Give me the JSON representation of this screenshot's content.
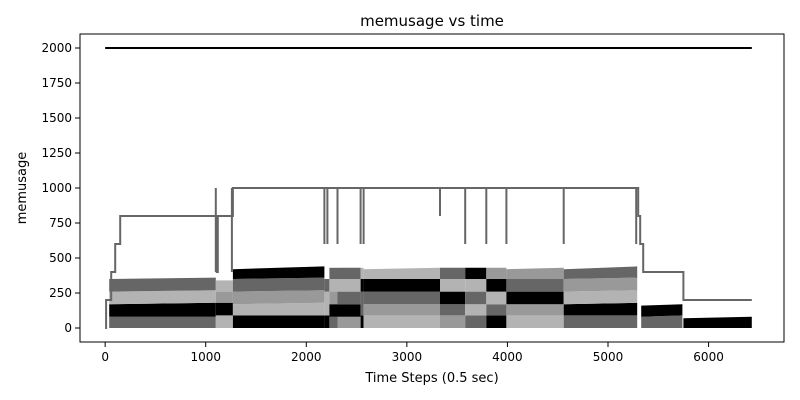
{
  "chart_data": {
    "type": "area",
    "title": "memusage vs time",
    "xlabel": "Time Steps (0.5 sec)",
    "ylabel": "memusage",
    "xlim": [
      -250,
      6750
    ],
    "ylim": [
      -100,
      2100
    ],
    "xticks": [
      0,
      1000,
      2000,
      3000,
      4000,
      5000,
      6000
    ],
    "yticks": [
      0,
      250,
      500,
      750,
      1000,
      1250,
      1500,
      1750,
      2000
    ],
    "grid": false,
    "legend": "none",
    "colors": {
      "black": "#000000",
      "dark": "#666666",
      "mid": "#999999",
      "light": "#b3b3b3",
      "line": "#666666",
      "limit": "#000000"
    },
    "limit_line": {
      "y": 2000,
      "x": [
        0,
        6430
      ]
    },
    "total_line": {
      "x": [
        0,
        10,
        60,
        100,
        150,
        1100,
        1110,
        1120,
        1260,
        1270,
        2180,
        2200,
        2210,
        2230,
        2300,
        2310,
        2320,
        2540,
        2560,
        2570,
        2580,
        3330,
        3340,
        3580,
        3590,
        3790,
        3800,
        3990,
        4000,
        4560,
        4570,
        5280,
        5300,
        5320,
        5350,
        5740,
        5750,
        6430
      ],
      "y": [
        0,
        200,
        400,
        600,
        800,
        800,
        400,
        800,
        800,
        1000,
        1000,
        1000,
        1000,
        1000,
        1000,
        1000,
        1000,
        1000,
        1000,
        1000,
        1000,
        1000,
        1000,
        1000,
        1000,
        1000,
        1000,
        1000,
        1000,
        1000,
        1000,
        1000,
        800,
        600,
        400,
        400,
        200,
        200
      ],
      "dips": [
        {
          "x": 1100,
          "to": 400
        },
        {
          "x": 1260,
          "to": 400
        },
        {
          "x": 2180,
          "to": 600
        },
        {
          "x": 2210,
          "to": 600
        },
        {
          "x": 2310,
          "to": 600
        },
        {
          "x": 2540,
          "to": 600
        },
        {
          "x": 2570,
          "to": 600
        },
        {
          "x": 3330,
          "to": 800
        },
        {
          "x": 3580,
          "to": 600
        },
        {
          "x": 3790,
          "to": 600
        },
        {
          "x": 3990,
          "to": 600
        },
        {
          "x": 4560,
          "to": 600
        },
        {
          "x": 5280,
          "to": 600
        }
      ]
    },
    "segments": [
      {
        "x0": 40,
        "x1": 1100,
        "bands": [
          {
            "color": "dark",
            "y0": [
              0,
              0
            ],
            "y1": [
              80,
              80
            ]
          },
          {
            "color": "black",
            "y0": [
              80,
              80
            ],
            "y1": [
              170,
              180
            ]
          },
          {
            "color": "light",
            "y0": [
              170,
              180
            ],
            "y1": [
              260,
              270
            ]
          },
          {
            "color": "dark",
            "y0": [
              260,
              270
            ],
            "y1": [
              350,
              360
            ]
          }
        ]
      },
      {
        "x0": 1100,
        "x1": 1270,
        "bands": [
          {
            "color": "light",
            "y0": [
              0,
              0
            ],
            "y1": [
              90,
              90
            ]
          },
          {
            "color": "black",
            "y0": [
              90,
              90
            ],
            "y1": [
              180,
              180
            ]
          },
          {
            "color": "mid",
            "y0": [
              180,
              180
            ],
            "y1": [
              260,
              260
            ]
          },
          {
            "color": "light",
            "y0": [
              260,
              260
            ],
            "y1": [
              340,
              340
            ]
          }
        ]
      },
      {
        "x0": 1270,
        "x1": 2180,
        "bands": [
          {
            "color": "black",
            "y0": [
              0,
              0
            ],
            "y1": [
              90,
              90
            ]
          },
          {
            "color": "light",
            "y0": [
              90,
              90
            ],
            "y1": [
              170,
              180
            ]
          },
          {
            "color": "mid",
            "y0": [
              170,
              180
            ],
            "y1": [
              260,
              270
            ]
          },
          {
            "color": "dark",
            "y0": [
              260,
              270
            ],
            "y1": [
              350,
              360
            ]
          },
          {
            "color": "black",
            "y0": [
              350,
              360
            ],
            "y1": [
              420,
              440
            ]
          }
        ]
      },
      {
        "x0": 2180,
        "x1": 2230,
        "bands": [
          {
            "color": "black",
            "y0": [
              0,
              0
            ],
            "y1": [
              90,
              90
            ]
          },
          {
            "color": "light",
            "y0": [
              90,
              90
            ],
            "y1": [
              260,
              260
            ]
          },
          {
            "color": "dark",
            "y0": [
              260,
              260
            ],
            "y1": [
              350,
              350
            ]
          }
        ]
      },
      {
        "x0": 2230,
        "x1": 2310,
        "bands": [
          {
            "color": "dark",
            "y0": [
              0,
              0
            ],
            "y1": [
              80,
              80
            ]
          },
          {
            "color": "black",
            "y0": [
              80,
              80
            ],
            "y1": [
              170,
              170
            ]
          },
          {
            "color": "mid",
            "y0": [
              170,
              170
            ],
            "y1": [
              260,
              260
            ]
          },
          {
            "color": "light",
            "y0": [
              260,
              260
            ],
            "y1": [
              350,
              350
            ]
          },
          {
            "color": "dark",
            "y0": [
              350,
              350
            ],
            "y1": [
              430,
              430
            ]
          }
        ]
      },
      {
        "x0": 2310,
        "x1": 2540,
        "bands": [
          {
            "color": "mid",
            "y0": [
              0,
              0
            ],
            "y1": [
              80,
              80
            ]
          },
          {
            "color": "black",
            "y0": [
              80,
              80
            ],
            "y1": [
              170,
              170
            ]
          },
          {
            "color": "dark",
            "y0": [
              170,
              170
            ],
            "y1": [
              260,
              260
            ]
          },
          {
            "color": "light",
            "y0": [
              260,
              260
            ],
            "y1": [
              350,
              350
            ]
          },
          {
            "color": "dark",
            "y0": [
              350,
              350
            ],
            "y1": [
              430,
              430
            ]
          }
        ]
      },
      {
        "x0": 2540,
        "x1": 2570,
        "bands": [
          {
            "color": "black",
            "y0": [
              0,
              0
            ],
            "y1": [
              90,
              90
            ]
          },
          {
            "color": "dark",
            "y0": [
              90,
              90
            ],
            "y1": [
              260,
              260
            ]
          },
          {
            "color": "black",
            "y0": [
              260,
              260
            ],
            "y1": [
              350,
              350
            ]
          },
          {
            "color": "light",
            "y0": [
              350,
              350
            ],
            "y1": [
              430,
              430
            ]
          }
        ]
      },
      {
        "x0": 2570,
        "x1": 3330,
        "bands": [
          {
            "color": "light",
            "y0": [
              0,
              0
            ],
            "y1": [
              90,
              90
            ]
          },
          {
            "color": "mid",
            "y0": [
              90,
              90
            ],
            "y1": [
              170,
              170
            ]
          },
          {
            "color": "dark",
            "y0": [
              170,
              170
            ],
            "y1": [
              260,
              260
            ]
          },
          {
            "color": "black",
            "y0": [
              260,
              260
            ],
            "y1": [
              350,
              350
            ]
          },
          {
            "color": "light",
            "y0": [
              350,
              350
            ],
            "y1": [
              420,
              430
            ]
          }
        ]
      },
      {
        "x0": 3330,
        "x1": 3580,
        "bands": [
          {
            "color": "mid",
            "y0": [
              0,
              0
            ],
            "y1": [
              90,
              90
            ]
          },
          {
            "color": "dark",
            "y0": [
              90,
              90
            ],
            "y1": [
              170,
              170
            ]
          },
          {
            "color": "black",
            "y0": [
              170,
              170
            ],
            "y1": [
              260,
              260
            ]
          },
          {
            "color": "light",
            "y0": [
              260,
              260
            ],
            "y1": [
              350,
              350
            ]
          },
          {
            "color": "dark",
            "y0": [
              350,
              350
            ],
            "y1": [
              430,
              430
            ]
          }
        ]
      },
      {
        "x0": 3580,
        "x1": 3790,
        "bands": [
          {
            "color": "dark",
            "y0": [
              0,
              0
            ],
            "y1": [
              90,
              90
            ]
          },
          {
            "color": "light",
            "y0": [
              90,
              90
            ],
            "y1": [
              170,
              170
            ]
          },
          {
            "color": "dark",
            "y0": [
              170,
              170
            ],
            "y1": [
              260,
              260
            ]
          },
          {
            "color": "light",
            "y0": [
              260,
              260
            ],
            "y1": [
              350,
              350
            ]
          },
          {
            "color": "black",
            "y0": [
              350,
              350
            ],
            "y1": [
              430,
              430
            ]
          }
        ]
      },
      {
        "x0": 3790,
        "x1": 3990,
        "bands": [
          {
            "color": "black",
            "y0": [
              0,
              0
            ],
            "y1": [
              90,
              90
            ]
          },
          {
            "color": "dark",
            "y0": [
              90,
              90
            ],
            "y1": [
              170,
              170
            ]
          },
          {
            "color": "light",
            "y0": [
              170,
              170
            ],
            "y1": [
              260,
              260
            ]
          },
          {
            "color": "black",
            "y0": [
              260,
              260
            ],
            "y1": [
              350,
              350
            ]
          },
          {
            "color": "mid",
            "y0": [
              350,
              350
            ],
            "y1": [
              430,
              430
            ]
          }
        ]
      },
      {
        "x0": 3990,
        "x1": 4560,
        "bands": [
          {
            "color": "light",
            "y0": [
              0,
              0
            ],
            "y1": [
              90,
              90
            ]
          },
          {
            "color": "mid",
            "y0": [
              90,
              90
            ],
            "y1": [
              170,
              170
            ]
          },
          {
            "color": "black",
            "y0": [
              170,
              170
            ],
            "y1": [
              260,
              260
            ]
          },
          {
            "color": "dark",
            "y0": [
              260,
              260
            ],
            "y1": [
              350,
              350
            ]
          },
          {
            "color": "mid",
            "y0": [
              350,
              350
            ],
            "y1": [
              420,
              430
            ]
          }
        ]
      },
      {
        "x0": 4560,
        "x1": 5290,
        "bands": [
          {
            "color": "dark",
            "y0": [
              0,
              0
            ],
            "y1": [
              90,
              90
            ]
          },
          {
            "color": "black",
            "y0": [
              90,
              90
            ],
            "y1": [
              170,
              180
            ]
          },
          {
            "color": "light",
            "y0": [
              170,
              180
            ],
            "y1": [
              260,
              270
            ]
          },
          {
            "color": "mid",
            "y0": [
              260,
              270
            ],
            "y1": [
              350,
              360
            ]
          },
          {
            "color": "dark",
            "y0": [
              350,
              360
            ],
            "y1": [
              420,
              440
            ]
          }
        ]
      },
      {
        "x0": 5330,
        "x1": 5740,
        "bands": [
          {
            "color": "dark",
            "y0": [
              0,
              0
            ],
            "y1": [
              80,
              90
            ]
          },
          {
            "color": "black",
            "y0": [
              80,
              90
            ],
            "y1": [
              160,
              170
            ]
          }
        ]
      },
      {
        "x0": 5750,
        "x1": 6430,
        "bands": [
          {
            "color": "black",
            "y0": [
              0,
              0
            ],
            "y1": [
              70,
              80
            ]
          }
        ]
      }
    ]
  }
}
